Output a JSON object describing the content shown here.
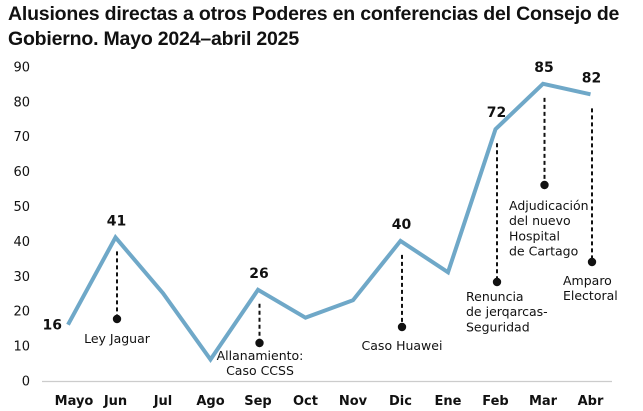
{
  "chart_data": {
    "type": "line",
    "title": "Alusiones directas a otros Poderes en conferencias del Consejo de Gobierno. Mayo 2024–abril 2025",
    "categories": [
      "Mayo",
      "Jun",
      "Jul",
      "Ago",
      "Sep",
      "Oct",
      "Nov",
      "Dic",
      "Ene",
      "Feb",
      "Mar",
      "Abr"
    ],
    "values": [
      16,
      41,
      25,
      6,
      26,
      18,
      23,
      40,
      31,
      72,
      85,
      82
    ],
    "labeled_values": [
      {
        "index": 0,
        "label": "16"
      },
      {
        "index": 1,
        "label": "41"
      },
      {
        "index": 4,
        "label": "26"
      },
      {
        "index": 7,
        "label": "40"
      },
      {
        "index": 9,
        "label": "72"
      },
      {
        "index": 10,
        "label": "85"
      },
      {
        "index": 11,
        "label": "82"
      }
    ],
    "annotations": [
      {
        "index": 1,
        "lines": [
          "Ley Jaguar"
        ]
      },
      {
        "index": 4,
        "lines": [
          "Allanamiento:",
          "Caso CCSS"
        ]
      },
      {
        "index": 7,
        "lines": [
          "Caso Huawei"
        ]
      },
      {
        "index": 9,
        "lines": [
          "Renuncia",
          "de jerqarcas-",
          "Seguridad"
        ]
      },
      {
        "index": 10,
        "lines": [
          "Adjudicación",
          "del nuevo",
          "Hospital",
          "de Cartago"
        ]
      },
      {
        "index": 11,
        "lines": [
          "Amparo",
          "Electoral"
        ]
      }
    ],
    "yticks": [
      "0",
      "10",
      "20",
      "30",
      "40",
      "50",
      "60",
      "70",
      "80",
      "90"
    ],
    "ylim": [
      0,
      90
    ],
    "xlabel": "",
    "ylabel": "",
    "grid": false,
    "line_color": "#6fa8c8"
  }
}
